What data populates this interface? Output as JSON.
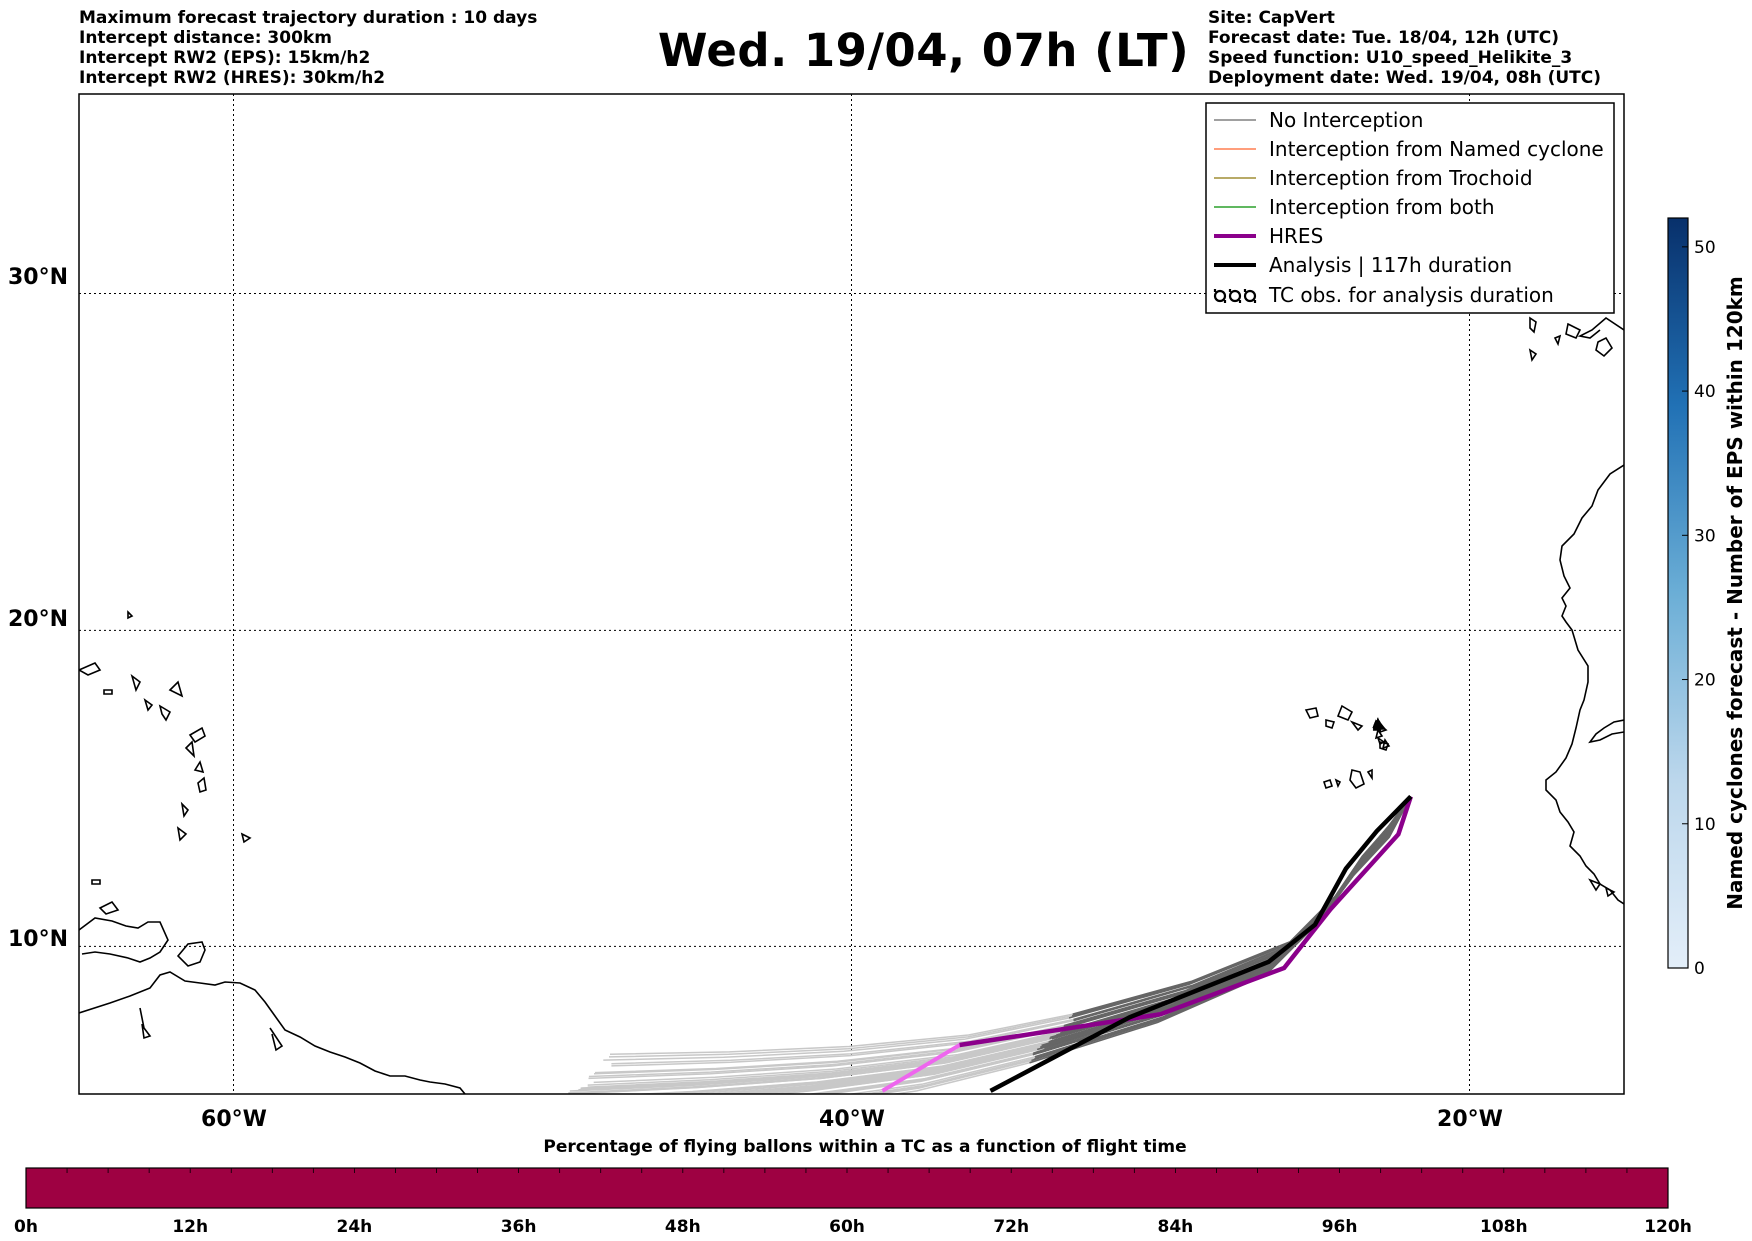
{
  "header_left": [
    "Maximum forecast trajectory duration : 10 days",
    "Intercept distance: 300km",
    "Intercept RW2 (EPS):  15km/h2",
    "Intercept RW2 (HRES): 30km/h2"
  ],
  "header_right": [
    "Site: CapVert",
    "Forecast date: Tue. 18/04, 12h (UTC)",
    "Speed function: U10_speed_Helikite_3",
    "Deployment date: Wed. 19/04, 08h (UTC)"
  ],
  "title": "Wed. 19/04, 07h (LT)",
  "map": {
    "lat_labels": [
      "30°N",
      "20°N",
      "10°N"
    ],
    "lon_labels": [
      "60°W",
      "40°W",
      "20°W"
    ],
    "lat_range": [
      5.2,
      35.5
    ],
    "lon_range": [
      -65,
      -15
    ]
  },
  "legend": {
    "items": [
      {
        "label": "No Interception",
        "color": "#808080",
        "style": "thin"
      },
      {
        "label": "Interception from Named cyclone",
        "color": "#ff7f50",
        "style": "thin"
      },
      {
        "label": "Interception from Trochoid",
        "color": "#a08d35",
        "style": "thin"
      },
      {
        "label": "Interception from both",
        "color": "#2ca02c",
        "style": "thin"
      },
      {
        "label": "HRES",
        "color": "#8b008b",
        "style": "thick"
      },
      {
        "label": "Analysis | 117h duration",
        "color": "#000000",
        "style": "thick"
      },
      {
        "label": "TC obs. for analysis duration",
        "icon": "tc-symbol-icon",
        "style": "symbol"
      }
    ]
  },
  "colorbar": {
    "label": "Named cyclones forecast - Number of EPS within 120km",
    "ticks": [
      "0",
      "10",
      "20",
      "30",
      "40",
      "50"
    ],
    "range": [
      0,
      52
    ],
    "color_low": "#e3eef9",
    "color_high": "#08306b"
  },
  "bottom_bar": {
    "title": "Percentage of flying ballons within a TC as a function of flight time",
    "ticks": [
      "0h",
      "12h",
      "24h",
      "36h",
      "48h",
      "60h",
      "72h",
      "84h",
      "96h",
      "108h",
      "120h"
    ],
    "fill_color": "#9e0142"
  },
  "chart_data": {
    "type": "line",
    "title": "Wed. 19/04, 07h (LT)",
    "series": [
      {
        "name": "HRES",
        "points": [
          [
            -39,
            5.3
          ],
          [
            -36.5,
            6.8
          ],
          [
            -30,
            7.8
          ],
          [
            -26,
            9.3
          ],
          [
            -24.5,
            11.2
          ],
          [
            -22.3,
            13.6
          ],
          [
            -21.9,
            14.8
          ]
        ]
      },
      {
        "name": "Analysis | 117h duration",
        "points": [
          [
            -35.5,
            5.3
          ],
          [
            -31,
            7.7
          ],
          [
            -26.5,
            9.5
          ],
          [
            -25,
            10.7
          ],
          [
            -24,
            12.5
          ],
          [
            -23,
            13.7
          ],
          [
            -21.9,
            14.8
          ]
        ]
      }
    ]
  }
}
